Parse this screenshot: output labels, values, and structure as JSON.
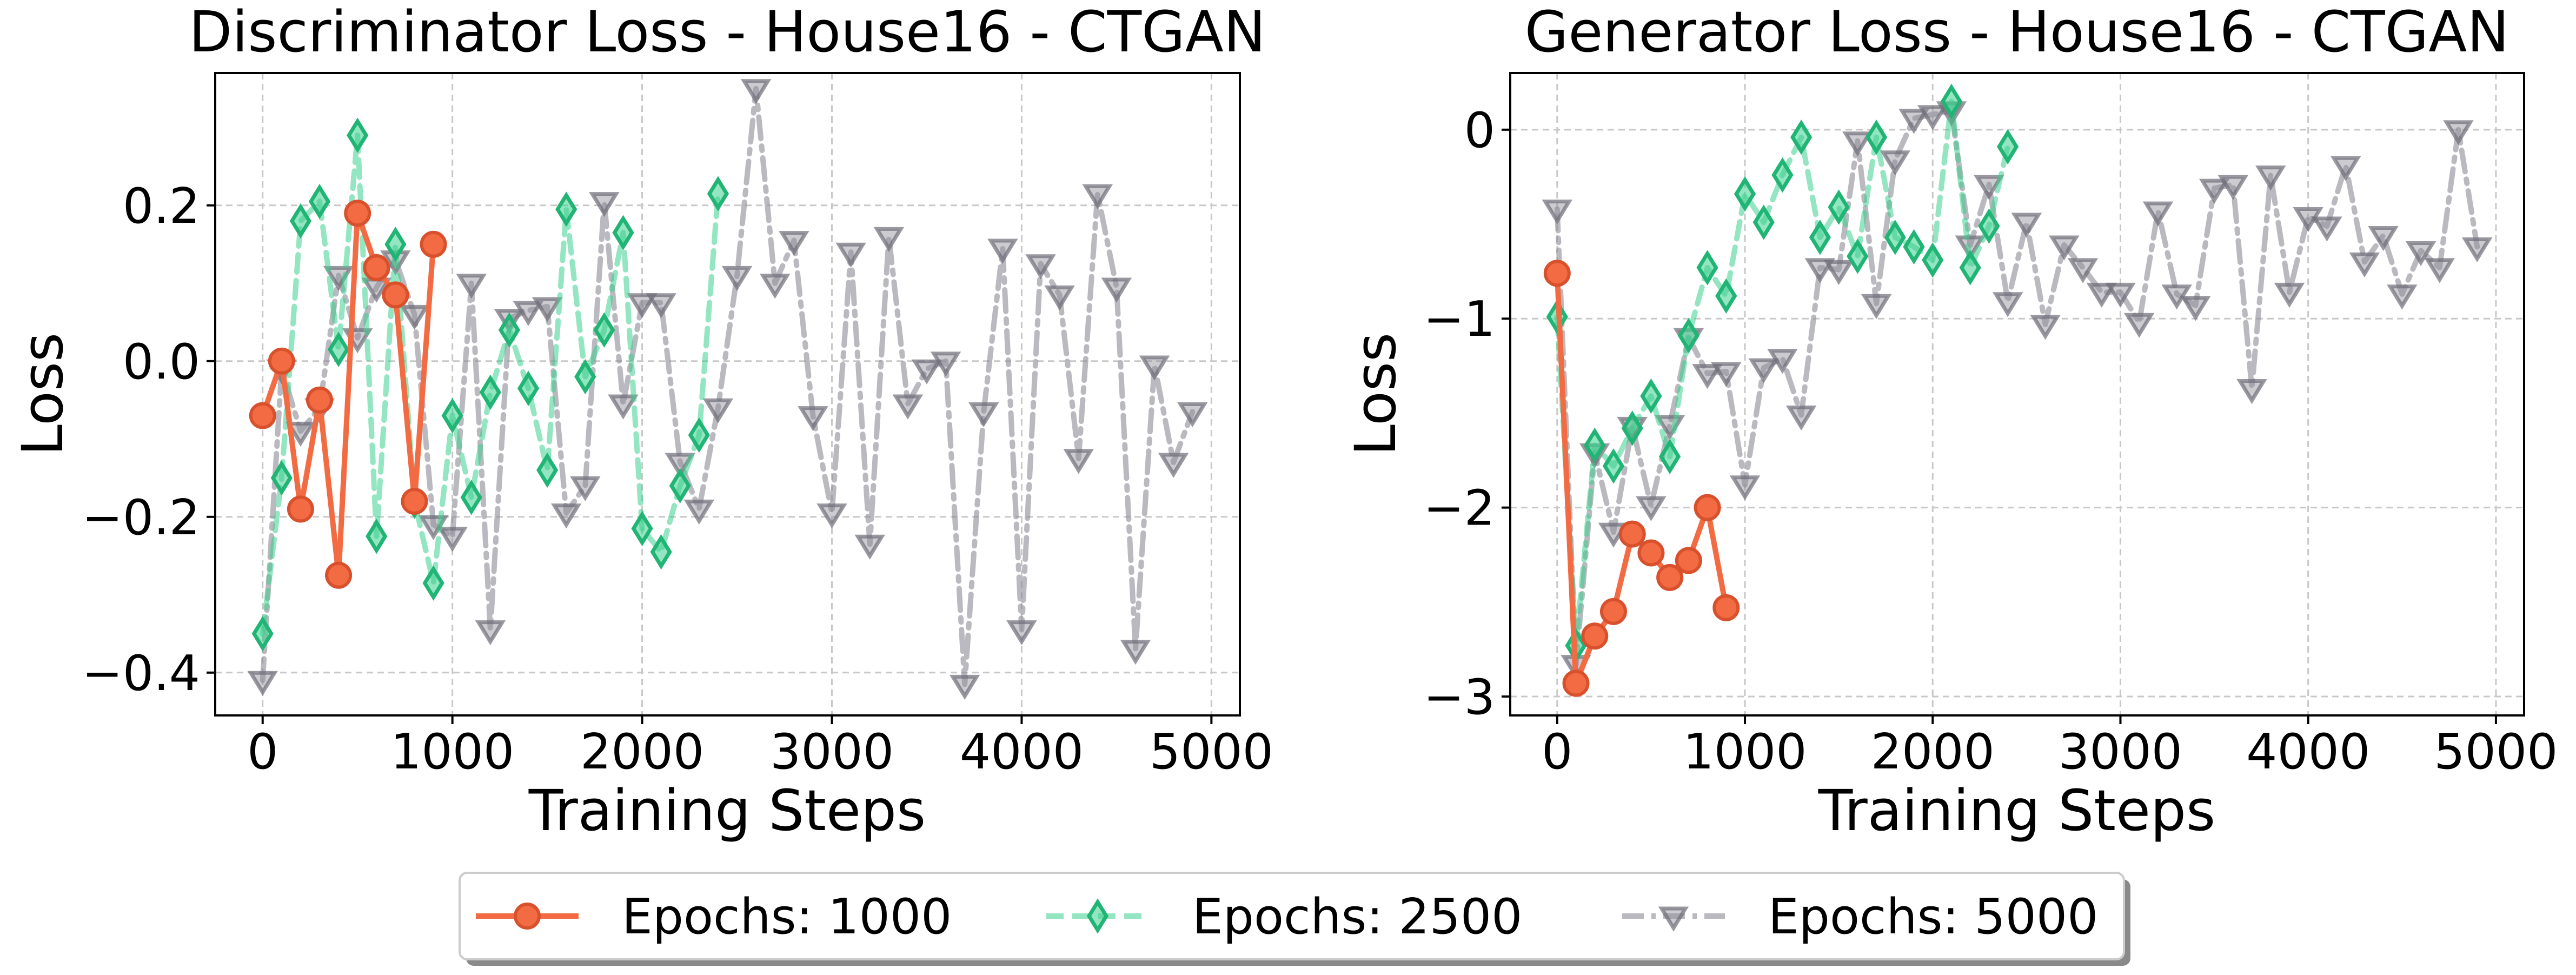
{
  "chart_data": [
    {
      "type": "line",
      "title": "Discriminator Loss - House16 - CTGAN",
      "xlabel": "Training Steps",
      "ylabel": "Loss",
      "xlim": [
        -250,
        5150
      ],
      "ylim": [
        -0.455,
        0.37
      ],
      "xticks": [
        0,
        1000,
        2000,
        3000,
        4000,
        5000
      ],
      "xtick_labels": [
        "0",
        "1000",
        "2000",
        "3000",
        "4000",
        "5000"
      ],
      "yticks": [
        -0.4,
        -0.2,
        0.0,
        0.2
      ],
      "ytick_labels": [
        "−0.4",
        "−0.2",
        "0.0",
        "0.2"
      ],
      "grid": true,
      "series": [
        {
          "name": "Epochs: 1000",
          "x": [
            0,
            100,
            200,
            300,
            400,
            500,
            600,
            700,
            800,
            900
          ],
          "y": [
            -0.07,
            0.0,
            -0.19,
            -0.05,
            -0.275,
            0.19,
            0.12,
            0.085,
            -0.18,
            0.15
          ]
        },
        {
          "name": "Epochs: 2500",
          "x": [
            0,
            100,
            200,
            300,
            400,
            500,
            600,
            700,
            800,
            900,
            1000,
            1100,
            1200,
            1300,
            1400,
            1500,
            1600,
            1700,
            1800,
            1900,
            2000,
            2100,
            2200,
            2300,
            2400
          ],
          "y": [
            -0.35,
            -0.15,
            0.18,
            0.205,
            0.015,
            0.29,
            -0.225,
            0.15,
            -0.18,
            -0.285,
            -0.07,
            -0.175,
            -0.04,
            0.04,
            -0.035,
            -0.14,
            0.195,
            -0.02,
            0.04,
            0.165,
            -0.215,
            -0.245,
            -0.16,
            -0.095,
            0.215
          ]
        },
        {
          "name": "Epochs: 5000",
          "x": [
            0,
            100,
            200,
            300,
            400,
            500,
            600,
            700,
            800,
            900,
            1000,
            1100,
            1200,
            1300,
            1400,
            1500,
            1600,
            1700,
            1800,
            1900,
            2000,
            2100,
            2200,
            2300,
            2400,
            2500,
            2600,
            2700,
            2800,
            2900,
            3000,
            3100,
            3200,
            3300,
            3400,
            3500,
            3600,
            3700,
            3800,
            3900,
            4000,
            4100,
            4200,
            4300,
            4400,
            4500,
            4600,
            4700,
            4800,
            4900
          ],
          "y": [
            -0.41,
            -0.01,
            -0.09,
            -0.06,
            0.11,
            0.03,
            0.095,
            0.13,
            0.06,
            -0.21,
            -0.225,
            0.1,
            -0.345,
            0.055,
            0.065,
            0.07,
            -0.195,
            -0.16,
            0.205,
            -0.055,
            0.075,
            0.075,
            -0.13,
            -0.19,
            -0.06,
            0.11,
            0.35,
            0.1,
            0.155,
            -0.07,
            -0.195,
            0.14,
            -0.235,
            0.16,
            -0.055,
            -0.01,
            0.0,
            -0.415,
            -0.065,
            0.145,
            -0.345,
            0.125,
            0.085,
            -0.125,
            0.215,
            0.095,
            -0.37,
            -0.005,
            -0.13,
            -0.065
          ]
        }
      ]
    },
    {
      "type": "line",
      "title": "Generator Loss - House16 - CTGAN",
      "xlabel": "Training Steps",
      "ylabel": "Loss",
      "xlim": [
        -250,
        5150
      ],
      "ylim": [
        -3.1,
        0.3
      ],
      "xticks": [
        0,
        1000,
        2000,
        3000,
        4000,
        5000
      ],
      "xtick_labels": [
        "0",
        "1000",
        "2000",
        "3000",
        "4000",
        "5000"
      ],
      "yticks": [
        -3,
        -2,
        -1,
        0
      ],
      "ytick_labels": [
        "−3",
        "−2",
        "−1",
        "0"
      ],
      "grid": true,
      "series": [
        {
          "name": "Epochs: 1000",
          "x": [
            0,
            100,
            200,
            300,
            400,
            500,
            600,
            700,
            800,
            900
          ],
          "y": [
            -0.76,
            -2.93,
            -2.68,
            -2.55,
            -2.14,
            -2.24,
            -2.37,
            -2.28,
            -2.0,
            -2.53
          ]
        },
        {
          "name": "Epochs: 2500",
          "x": [
            0,
            100,
            200,
            300,
            400,
            500,
            600,
            700,
            800,
            900,
            1000,
            1100,
            1200,
            1300,
            1400,
            1500,
            1600,
            1700,
            1800,
            1900,
            2000,
            2100,
            2200,
            2300,
            2400
          ],
          "y": [
            -0.99,
            -2.73,
            -1.67,
            -1.78,
            -1.58,
            -1.41,
            -1.73,
            -1.09,
            -0.73,
            -0.88,
            -0.34,
            -0.49,
            -0.24,
            -0.04,
            -0.57,
            -0.41,
            -0.67,
            -0.04,
            -0.57,
            -0.62,
            -0.69,
            0.15,
            -0.73,
            -0.51,
            -0.09
          ]
        },
        {
          "name": "Epochs: 5000",
          "x": [
            0,
            100,
            200,
            300,
            400,
            500,
            600,
            700,
            800,
            900,
            1000,
            1100,
            1200,
            1300,
            1400,
            1500,
            1600,
            1700,
            1800,
            1900,
            2000,
            2100,
            2200,
            2300,
            2400,
            2500,
            2600,
            2700,
            2800,
            2900,
            3000,
            3100,
            3200,
            3300,
            3400,
            3500,
            3600,
            3700,
            3800,
            3900,
            4000,
            4100,
            4200,
            4300,
            4400,
            4500,
            4600,
            4700,
            4800,
            4900
          ],
          "y": [
            -0.42,
            -2.83,
            -1.71,
            -2.13,
            -1.57,
            -1.99,
            -1.56,
            -1.1,
            -1.29,
            -1.28,
            -1.88,
            -1.26,
            -1.21,
            -1.51,
            -0.73,
            -0.74,
            -0.06,
            -0.92,
            -0.16,
            0.06,
            0.08,
            0.1,
            -0.61,
            -0.29,
            -0.91,
            -0.49,
            -1.03,
            -0.61,
            -0.73,
            -0.86,
            -0.86,
            -1.02,
            -0.43,
            -0.87,
            -0.93,
            -0.31,
            -0.29,
            -1.37,
            -0.24,
            -0.86,
            -0.46,
            -0.51,
            -0.19,
            -0.7,
            -0.56,
            -0.87,
            -0.64,
            -0.73,
            0.0,
            -0.62
          ]
        }
      ]
    }
  ],
  "legend": {
    "placement": "bottom-center",
    "entries": [
      {
        "label": "Epochs: 1000",
        "color": "#f26b43",
        "marker": "circle",
        "linestyle": "solid"
      },
      {
        "label": "Epochs: 2500",
        "color": "#3ccf8e",
        "marker": "diamond",
        "linestyle": "dashed"
      },
      {
        "label": "Epochs: 5000",
        "color": "#8e8b96",
        "marker": "triangle-down",
        "linestyle": "dashdot"
      }
    ]
  },
  "colors": {
    "epochs_1000": "#f26b43",
    "epochs_2500": "#3ccf8e",
    "epochs_5000": "#8e8b96",
    "grid": "#c8c8c8"
  }
}
